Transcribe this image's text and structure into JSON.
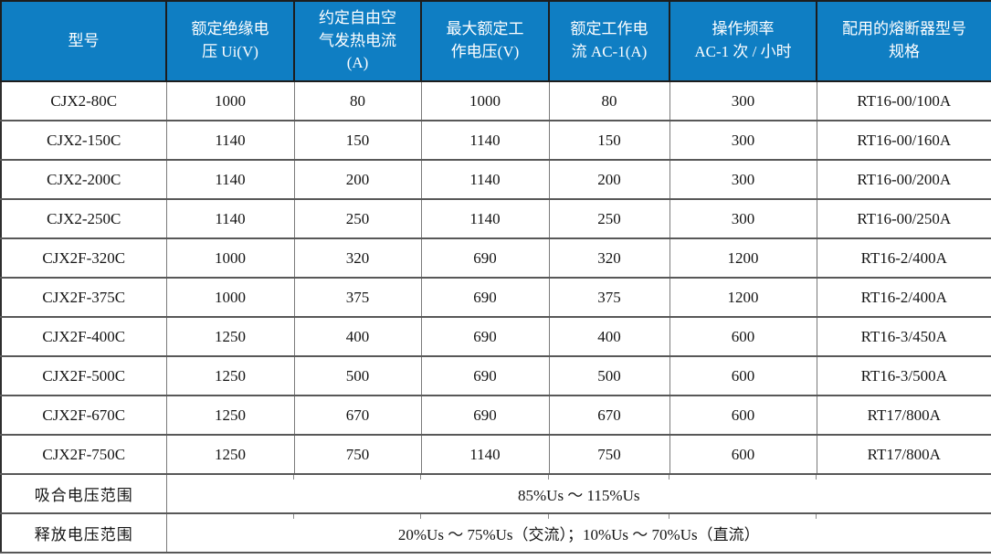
{
  "colors": {
    "header_bg": "#0f7ec3",
    "header_fg": "#ffffff",
    "grid_line": "#7a7a7a",
    "outer_border": "#2e2e2e"
  },
  "table": {
    "column_keys": [
      "model",
      "rated-insulation-voltage",
      "conventional-free-air-thermal-current",
      "max-rated-working-voltage",
      "rated-working-current-ac1",
      "operating-frequency-ac1",
      "matching-fuse-model"
    ],
    "columns": [
      {
        "label": "型号"
      },
      {
        "label": "额定绝缘电\n压 Ui(V)"
      },
      {
        "label": "约定自由空\n气发热电流\n(A)"
      },
      {
        "label": "最大额定工\n作电压(V)"
      },
      {
        "label": "额定工作电\n流 AC-1(A)"
      },
      {
        "label": "操作频率\nAC-1 次 / 小时"
      },
      {
        "label": "配用的熔断器型号\n规格"
      }
    ],
    "rows": [
      [
        "CJX2-80C",
        "1000",
        "80",
        "1000",
        "80",
        "300",
        "RT16-00/100A"
      ],
      [
        "CJX2-150C",
        "1140",
        "150",
        "1140",
        "150",
        "300",
        "RT16-00/160A"
      ],
      [
        "CJX2-200C",
        "1140",
        "200",
        "1140",
        "200",
        "300",
        "RT16-00/200A"
      ],
      [
        "CJX2-250C",
        "1140",
        "250",
        "1140",
        "250",
        "300",
        "RT16-00/250A"
      ],
      [
        "CJX2F-320C",
        "1000",
        "320",
        "690",
        "320",
        "1200",
        "RT16-2/400A"
      ],
      [
        "CJX2F-375C",
        "1000",
        "375",
        "690",
        "375",
        "1200",
        "RT16-2/400A"
      ],
      [
        "CJX2F-400C",
        "1250",
        "400",
        "690",
        "400",
        "600",
        "RT16-3/450A"
      ],
      [
        "CJX2F-500C",
        "1250",
        "500",
        "690",
        "500",
        "600",
        "RT16-3/500A"
      ],
      [
        "CJX2F-670C",
        "1250",
        "670",
        "690",
        "670",
        "600",
        "RT17/800A"
      ],
      [
        "CJX2F-750C",
        "1250",
        "750",
        "1140",
        "750",
        "600",
        "RT17/800A"
      ]
    ],
    "footer_rows": [
      {
        "label": "吸合电压范围",
        "value": "85%Us ～ 115%Us"
      },
      {
        "label": "释放电压范围",
        "value": "20%Us ～ 75%Us（交流）；10%Us ～ 70%Us（直流）"
      }
    ]
  }
}
